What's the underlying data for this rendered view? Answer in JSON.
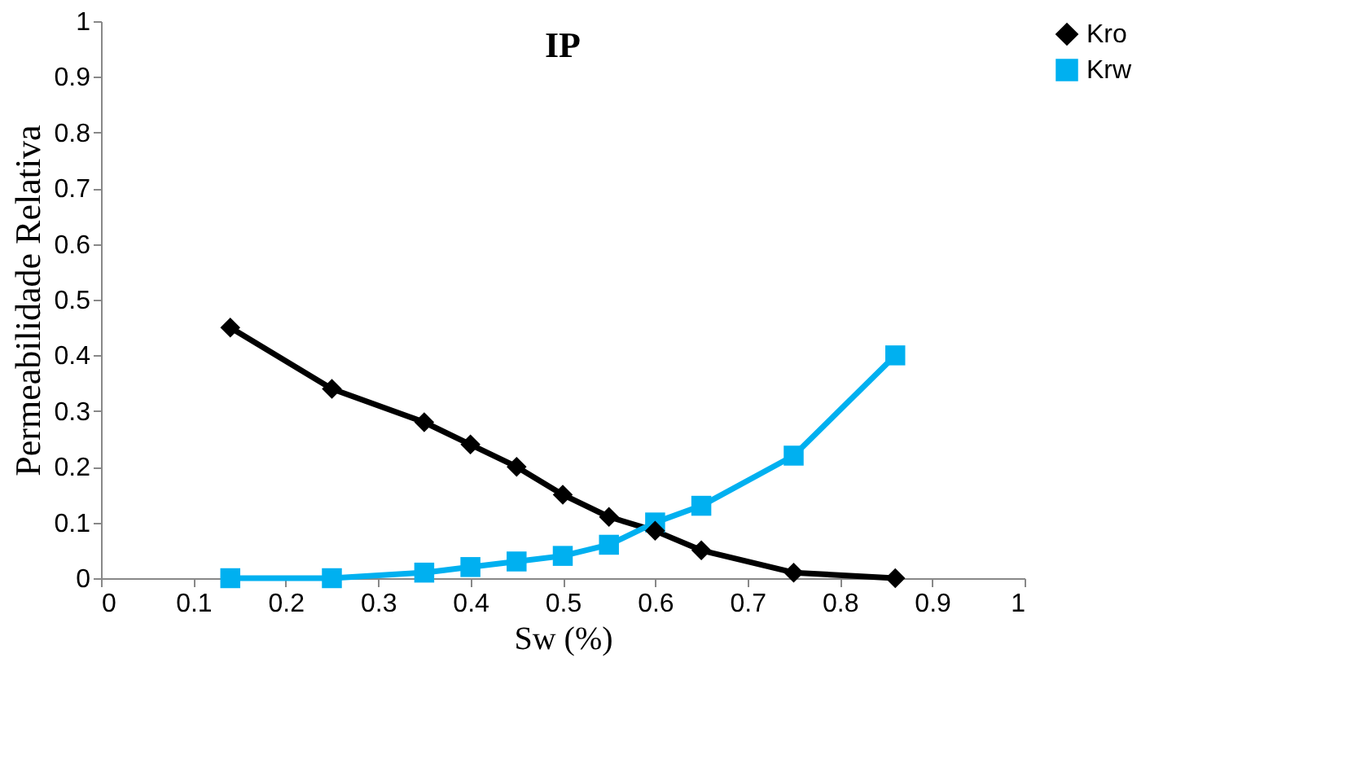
{
  "chart_data": {
    "type": "line",
    "title": "IP",
    "xlabel": "Sw (%)",
    "ylabel": "Permeabilidade Relativa",
    "x": [
      0.14,
      0.25,
      0.35,
      0.4,
      0.45,
      0.5,
      0.55,
      0.6,
      0.65,
      0.75,
      0.86
    ],
    "series": [
      {
        "name": "Kro",
        "color": "#000000",
        "marker": "diamond",
        "values": [
          0.45,
          0.34,
          0.28,
          0.24,
          0.2,
          0.15,
          0.11,
          0.085,
          0.05,
          0.01,
          0
        ]
      },
      {
        "name": "Krw",
        "color": "#00b0f0",
        "marker": "square",
        "values": [
          0,
          0,
          0.01,
          0.02,
          0.03,
          0.04,
          0.06,
          0.1,
          0.13,
          0.22,
          0.4
        ]
      }
    ],
    "xlim": [
      0,
      1
    ],
    "xticks": [
      0,
      0.1,
      0.2,
      0.3,
      0.4,
      0.5,
      0.6,
      0.7,
      0.8,
      0.9,
      1
    ],
    "ylim": [
      0,
      1
    ],
    "yticks": [
      0,
      0.1,
      0.2,
      0.3,
      0.4,
      0.5,
      0.6,
      0.7,
      0.8,
      0.9,
      1
    ],
    "grid": false,
    "legend": "right",
    "line_style": "solid"
  }
}
